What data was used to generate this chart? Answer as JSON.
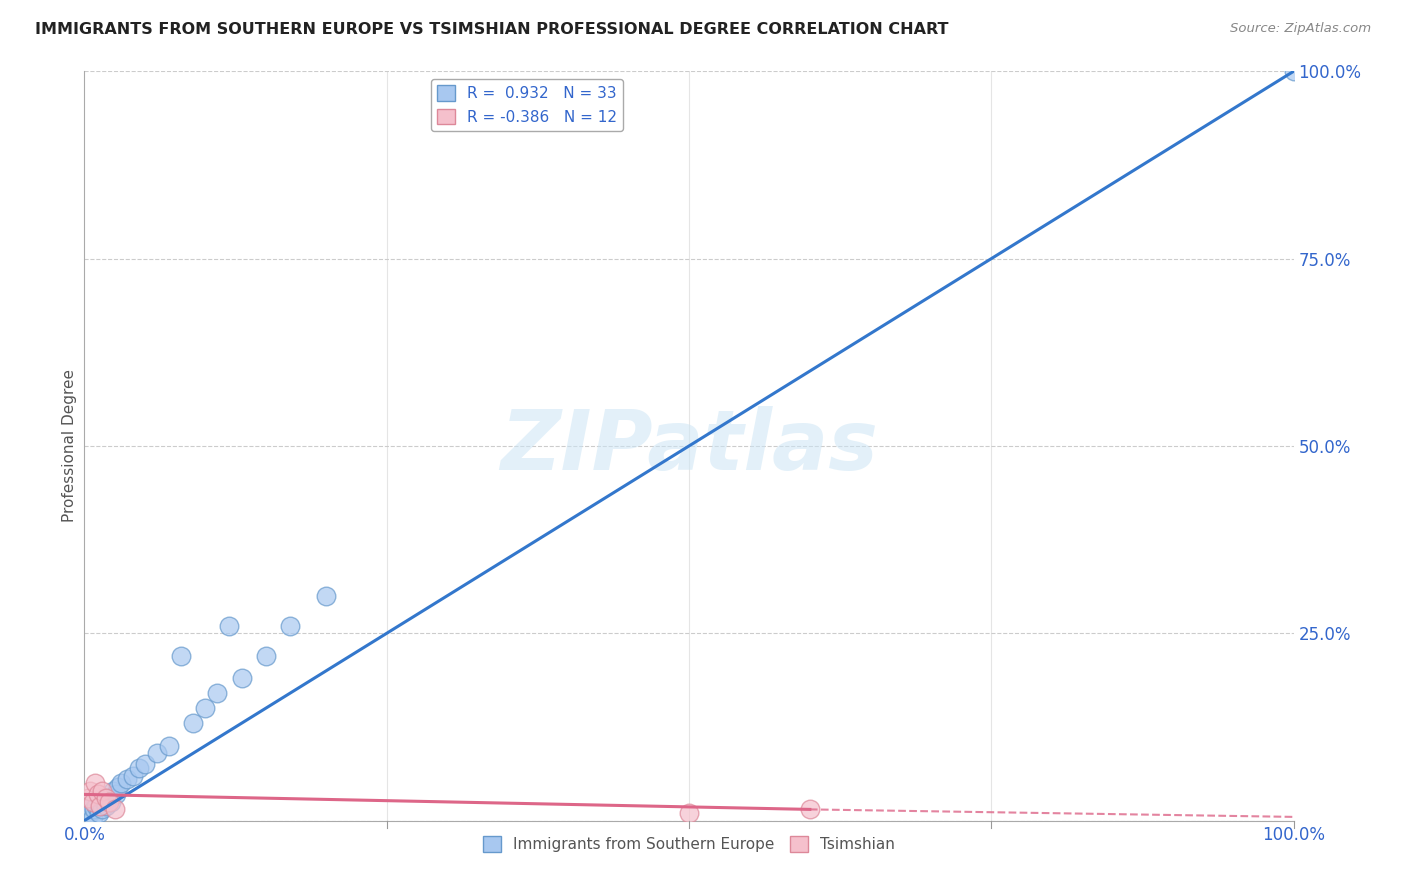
{
  "title": "IMMIGRANTS FROM SOUTHERN EUROPE VS TSIMSHIAN PROFESSIONAL DEGREE CORRELATION CHART",
  "source": "Source: ZipAtlas.com",
  "ylabel": "Professional Degree",
  "legend_entry1": "R =  0.932   N = 33",
  "legend_entry2": "R = -0.386   N = 12",
  "legend_label1": "Immigrants from Southern Europe",
  "legend_label2": "Tsimshian",
  "blue_color": "#a8c8f0",
  "blue_edge_color": "#6699cc",
  "blue_line_color": "#3377cc",
  "pink_color": "#f5c0cc",
  "pink_edge_color": "#dd8899",
  "pink_line_color": "#dd6688",
  "watermark": "ZIPatlas",
  "blue_scatter_x": [
    0.2,
    0.4,
    0.5,
    0.7,
    0.8,
    1.0,
    1.2,
    1.4,
    1.5,
    1.6,
    1.8,
    2.0,
    2.2,
    2.4,
    2.6,
    2.8,
    3.0,
    3.5,
    4.0,
    4.5,
    5.0,
    6.0,
    7.0,
    8.0,
    9.0,
    10.0,
    11.0,
    12.0,
    13.0,
    15.0,
    17.0,
    20.0,
    100.0
  ],
  "blue_scatter_y": [
    1.5,
    2.0,
    1.0,
    0.5,
    1.5,
    2.0,
    1.0,
    3.0,
    1.5,
    2.5,
    2.0,
    3.0,
    2.5,
    4.0,
    3.5,
    4.5,
    5.0,
    5.5,
    6.0,
    7.0,
    7.5,
    9.0,
    10.0,
    22.0,
    13.0,
    15.0,
    17.0,
    26.0,
    19.0,
    22.0,
    26.0,
    30.0,
    100.0
  ],
  "pink_scatter_x": [
    0.3,
    0.5,
    0.7,
    0.9,
    1.1,
    1.3,
    1.5,
    1.8,
    2.0,
    2.5,
    50.0,
    60.0
  ],
  "pink_scatter_y": [
    3.0,
    4.0,
    2.5,
    5.0,
    3.5,
    2.0,
    4.0,
    3.0,
    2.5,
    1.5,
    1.0,
    1.5
  ],
  "blue_trend_x0": 0,
  "blue_trend_y0": 0,
  "blue_trend_x1": 100,
  "blue_trend_y1": 100,
  "pink_trend_x0": 0,
  "pink_trend_y0": 3.5,
  "pink_trend_x1_solid": 60,
  "pink_trend_y1_solid": 1.5,
  "pink_trend_x1_dash": 100,
  "pink_trend_y1_dash": 0.5,
  "xlim": [
    0,
    100
  ],
  "ylim": [
    0,
    100
  ],
  "ytick_values": [
    0,
    25,
    50,
    75,
    100
  ],
  "xtick_values": [
    0,
    25,
    50,
    75,
    100
  ],
  "xtick_minor": [
    25,
    50,
    75
  ]
}
